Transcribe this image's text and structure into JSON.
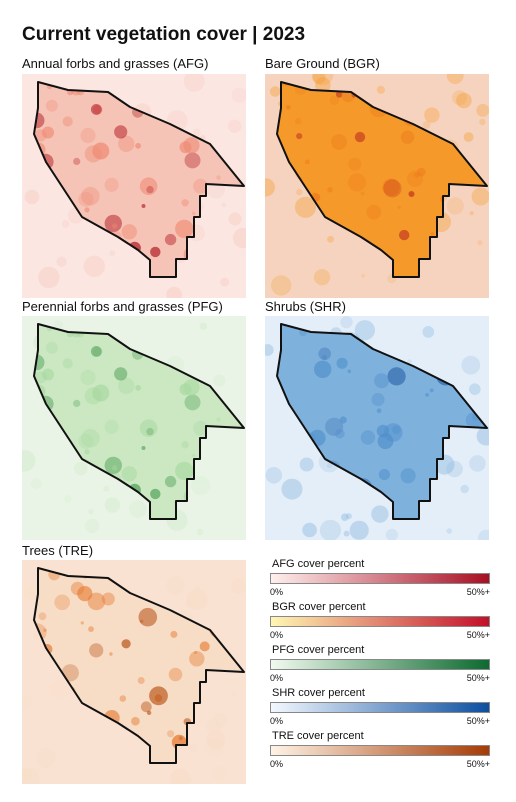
{
  "title": "Current vegetation cover | 2023",
  "panels": [
    {
      "key": "afg",
      "label": "Annual forbs and grasses (AFG)",
      "bg": "#fbe6e2",
      "inside": "#f6c4b6",
      "mid": "#ef8a74",
      "dark": "#b01822"
    },
    {
      "key": "bgr",
      "label": "Bare Ground (BGR)",
      "bg": "#f6d3bf",
      "inside": "#f59a2a",
      "mid": "#ee7a1c",
      "dark": "#c0301e"
    },
    {
      "key": "pfg",
      "label": "Perennial forbs and grasses (PFG)",
      "bg": "#e9f4e6",
      "inside": "#cbe8c3",
      "mid": "#a8d8a0",
      "dark": "#4f9f55"
    },
    {
      "key": "shr",
      "label": "Shrubs (SHR)",
      "bg": "#e4eef8",
      "inside": "#7fb1dd",
      "mid": "#4f8fca",
      "dark": "#2a62a8"
    },
    {
      "key": "tre",
      "label": "Trees (TRE)",
      "bg": "#f9e2d1",
      "inside": "#f7dcc6",
      "mid": "#e5762a",
      "dark": "#b44a0c"
    }
  ],
  "legend": [
    {
      "title": "AFG cover percent",
      "min": "0%",
      "max": "50%+",
      "from": "#fff0ee",
      "to": "#a80f23"
    },
    {
      "title": "BGR cover percent",
      "min": "0%",
      "max": "50%+",
      "from": "#fff7b3",
      "to": "#c2102a"
    },
    {
      "title": "PFG cover percent",
      "min": "0%",
      "max": "50%+",
      "from": "#f1faee",
      "to": "#0c6a30"
    },
    {
      "title": "SHR cover percent",
      "min": "0%",
      "max": "50%+",
      "from": "#f3f8ff",
      "to": "#0c4fa0"
    },
    {
      "title": "TRE cover percent",
      "min": "0%",
      "max": "50%+",
      "from": "#fff3e6",
      "to": "#a53b05"
    }
  ]
}
